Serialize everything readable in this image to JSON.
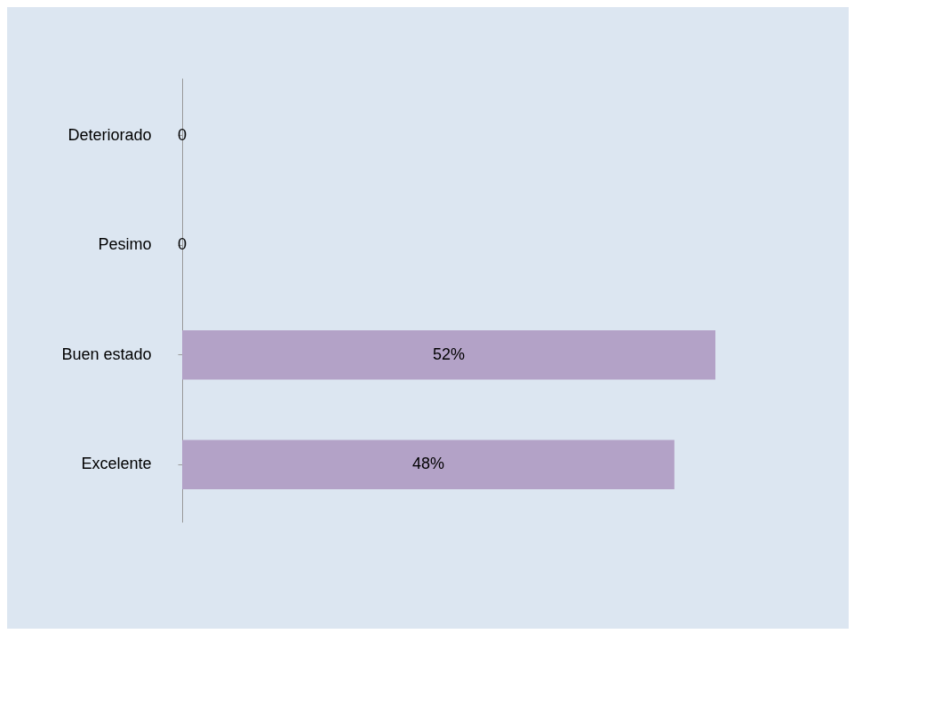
{
  "chart_data": {
    "type": "bar",
    "orientation": "horizontal",
    "categories": [
      "Deteriorado",
      "Pesimo",
      "Buen estado",
      "Excelente"
    ],
    "values": [
      0,
      0,
      52,
      48
    ],
    "value_labels": [
      "0",
      "0",
      "52%",
      "48%"
    ],
    "color": "#b3a2c7",
    "tick_labels": "y",
    "grid": false
  }
}
